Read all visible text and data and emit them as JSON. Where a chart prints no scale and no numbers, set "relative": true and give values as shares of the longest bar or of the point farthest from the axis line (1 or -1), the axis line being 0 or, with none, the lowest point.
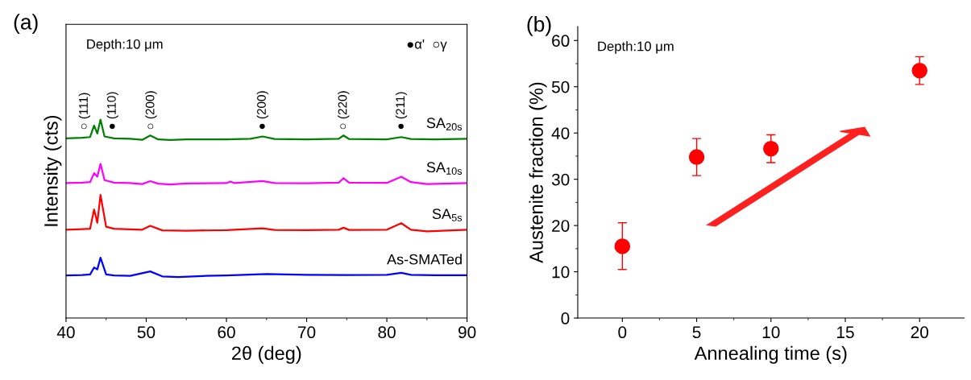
{
  "chart_data": [
    {
      "type": "line",
      "title": "(a)",
      "xlabel": "2θ (deg)",
      "ylabel": "Intensity (cts)",
      "relative": true,
      "xlim": [
        40,
        90
      ],
      "xticks": [
        40,
        50,
        60,
        70,
        80,
        90
      ],
      "annotations": [
        "Depth:10 μm",
        "●α'  ○γ",
        "○ (111)",
        "● (110)",
        "○ (200)",
        "● (200)",
        "○ (220)",
        "● (211)"
      ],
      "series": [
        {
          "name": "SA$_{20s}$",
          "color": "#008000",
          "x": [
            40,
            42,
            43,
            43.5,
            43.9,
            44.3,
            44.8,
            46,
            48,
            49.5,
            50.5,
            51.5,
            53,
            55,
            60,
            63,
            64.5,
            66,
            70,
            74,
            74.6,
            75.3,
            80,
            81.8,
            83,
            86,
            90
          ],
          "values": [
            0.905,
            0.908,
            0.912,
            0.97,
            0.93,
            1.0,
            0.915,
            0.905,
            0.903,
            0.898,
            0.92,
            0.9,
            0.897,
            0.9,
            0.9,
            0.903,
            0.915,
            0.902,
            0.9,
            0.903,
            0.92,
            0.902,
            0.9,
            0.912,
            0.902,
            0.9,
            0.903
          ]
        },
        {
          "name": "SA$_{10s}$",
          "color": "#ff00ff",
          "x": [
            40,
            42,
            43,
            43.5,
            43.9,
            44.3,
            44.8,
            46,
            48,
            49.5,
            50.5,
            51.5,
            53,
            55,
            60,
            60.5,
            61,
            64.5,
            66,
            70,
            74,
            74.6,
            75.3,
            80,
            81.8,
            83,
            85,
            90
          ],
          "values": [
            0.68,
            0.682,
            0.685,
            0.73,
            0.712,
            0.777,
            0.695,
            0.682,
            0.68,
            0.675,
            0.69,
            0.677,
            0.673,
            0.678,
            0.68,
            0.688,
            0.68,
            0.69,
            0.68,
            0.679,
            0.682,
            0.705,
            0.682,
            0.681,
            0.712,
            0.685,
            0.675,
            0.68
          ]
        },
        {
          "name": "SA$_{5s}$",
          "color": "#ff0000",
          "x": [
            40,
            42,
            43,
            43.5,
            43.9,
            44.3,
            45,
            46,
            48,
            49.5,
            50.5,
            52,
            55,
            60,
            64.5,
            66,
            70,
            74,
            74.6,
            75.3,
            80,
            81.8,
            83,
            85,
            90
          ],
          "values": [
            0.445,
            0.448,
            0.45,
            0.547,
            0.48,
            0.62,
            0.46,
            0.45,
            0.447,
            0.445,
            0.465,
            0.442,
            0.44,
            0.443,
            0.452,
            0.444,
            0.443,
            0.445,
            0.455,
            0.444,
            0.445,
            0.478,
            0.445,
            0.437,
            0.445
          ]
        },
        {
          "name": "As-SMATed",
          "color": "#0000ff",
          "x": [
            40,
            42,
            43,
            43.5,
            43.9,
            44.3,
            45,
            46,
            48,
            50.5,
            52,
            54,
            57,
            60,
            65,
            70,
            75,
            80,
            81.8,
            83,
            86,
            90
          ],
          "values": [
            0.215,
            0.217,
            0.22,
            0.255,
            0.245,
            0.304,
            0.22,
            0.215,
            0.213,
            0.235,
            0.21,
            0.207,
            0.212,
            0.215,
            0.222,
            0.218,
            0.217,
            0.218,
            0.228,
            0.218,
            0.216,
            0.216
          ]
        }
      ]
    },
    {
      "type": "scatter",
      "title": "(b)",
      "xlabel": "Annealing time (s)",
      "ylabel": "Austenite fraction (%)",
      "xlim": [
        -3,
        23
      ],
      "ylim": [
        0,
        63
      ],
      "xticks": [
        0,
        5,
        10,
        15,
        20
      ],
      "yticks": [
        0,
        10,
        20,
        30,
        40,
        50,
        60
      ],
      "marker": "circle",
      "annotations": [
        "Depth:10 μm"
      ],
      "series": [
        {
          "color": "#ff0000",
          "x": [
            0,
            5,
            10,
            20
          ],
          "values": [
            15.5,
            34.8,
            36.6,
            53.5
          ],
          "errors": [
            [
              10.5,
              20.6
            ],
            [
              30.8,
              38.8
            ],
            [
              33.6,
              39.6
            ],
            [
              50.5,
              56.5
            ]
          ]
        }
      ]
    }
  ]
}
